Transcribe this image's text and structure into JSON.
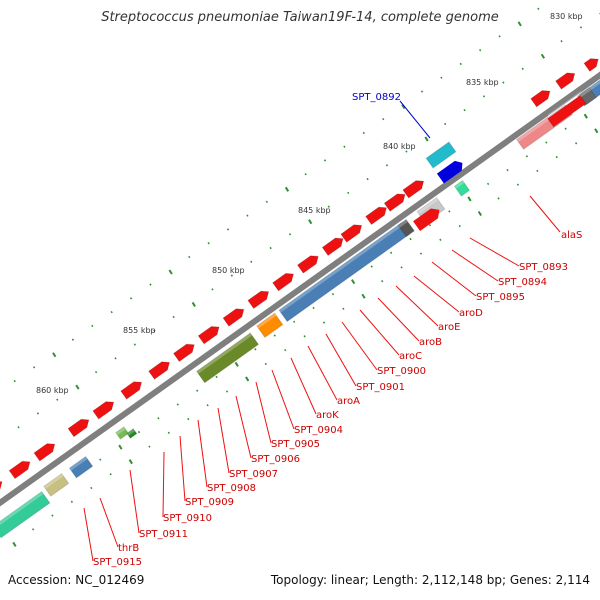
{
  "title": "Streptococcus pneumoniae Taiwan19F-14, complete genome",
  "footer": {
    "accession": "Accession: NC_012469",
    "summary": "Topology: linear; Length: 2,112,148 bp; Genes: 2,114"
  },
  "colors": {
    "backbone": "#7f7f7f",
    "red_gene": "#ee1111",
    "blue_gene": "#4a7fb5",
    "label_red": "#cc0000",
    "label_blue": "#0000cc",
    "tick": "#2f8f2f"
  },
  "kbp_ticks": [
    "830 kbp",
    "835 kbp",
    "840 kbp",
    "845 kbp",
    "850 kbp",
    "855 kbp",
    "860 kbp"
  ],
  "labels": [
    {
      "text": "SPT_0892",
      "color": "blue"
    },
    {
      "text": "alaS",
      "color": "red"
    },
    {
      "text": "SPT_0893",
      "color": "red"
    },
    {
      "text": "SPT_0894",
      "color": "red"
    },
    {
      "text": "SPT_0895",
      "color": "red"
    },
    {
      "text": "aroD",
      "color": "red"
    },
    {
      "text": "aroE",
      "color": "red"
    },
    {
      "text": "aroB",
      "color": "red"
    },
    {
      "text": "aroC",
      "color": "red"
    },
    {
      "text": "SPT_0900",
      "color": "red"
    },
    {
      "text": "SPT_0901",
      "color": "red"
    },
    {
      "text": "aroA",
      "color": "red"
    },
    {
      "text": "aroK",
      "color": "red"
    },
    {
      "text": "SPT_0904",
      "color": "red"
    },
    {
      "text": "SPT_0905",
      "color": "red"
    },
    {
      "text": "SPT_0906",
      "color": "red"
    },
    {
      "text": "SPT_0907",
      "color": "red"
    },
    {
      "text": "SPT_0908",
      "color": "red"
    },
    {
      "text": "SPT_0909",
      "color": "red"
    },
    {
      "text": "SPT_0910",
      "color": "red"
    },
    {
      "text": "SPT_0911",
      "color": "red"
    },
    {
      "text": "thrB",
      "color": "red"
    },
    {
      "text": "SPT_0915",
      "color": "red"
    }
  ]
}
